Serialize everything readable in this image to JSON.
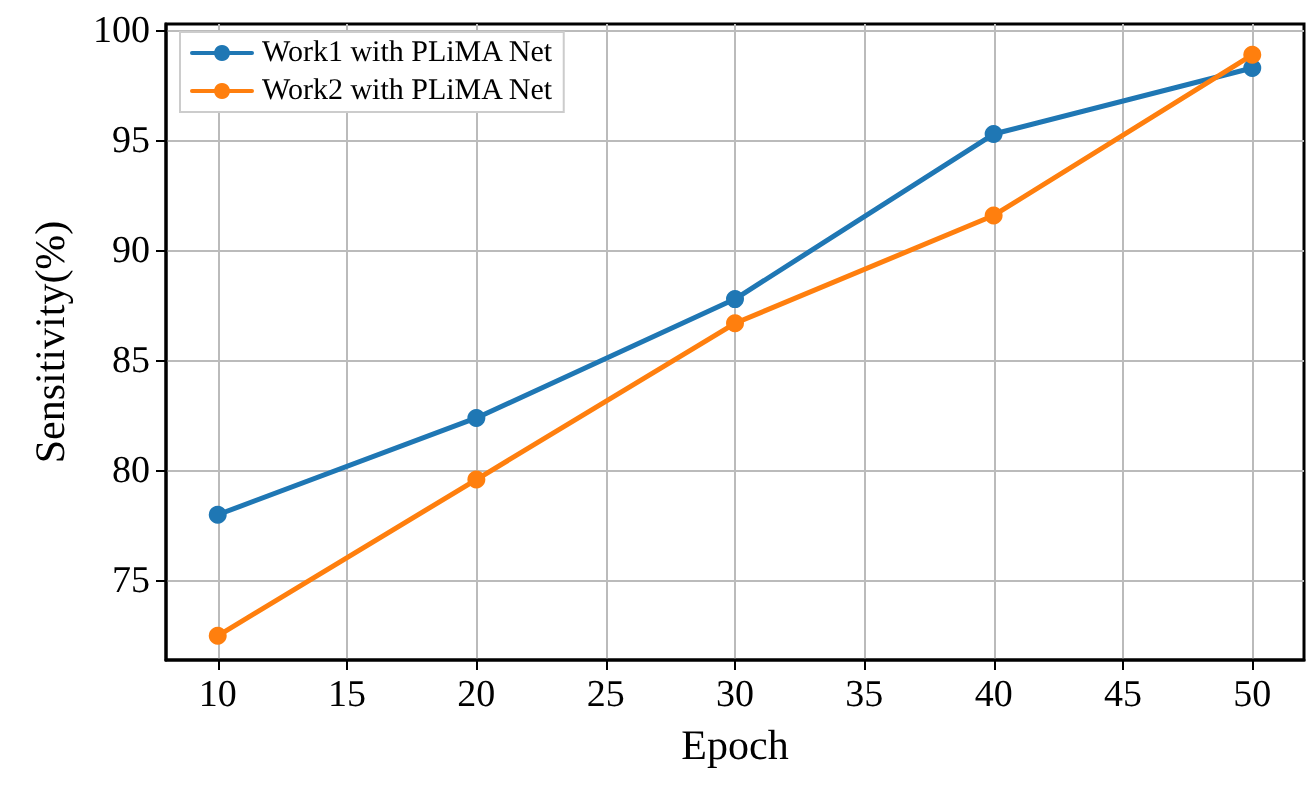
{
  "chart_data": {
    "type": "line",
    "xlabel": "Epoch",
    "ylabel": "Sensitivity(%)",
    "x": [
      10,
      20,
      30,
      40,
      50
    ],
    "series": [
      {
        "name": "Work1 with PLiMA Net",
        "color": "#1f77b4",
        "values": [
          78.0,
          82.4,
          87.8,
          95.3,
          98.3
        ]
      },
      {
        "name": "Work2 with PLiMA Net",
        "color": "#ff7f0e",
        "values": [
          72.5,
          79.6,
          86.7,
          91.6,
          98.9
        ]
      }
    ],
    "xlim": [
      8,
      52
    ],
    "xticks": [
      10,
      15,
      20,
      25,
      30,
      35,
      40,
      45,
      50
    ],
    "ylim": [
      71.4,
      100.3
    ],
    "yticks": [
      75,
      80,
      85,
      90,
      95,
      100
    ],
    "grid": true,
    "legend": "top left",
    "marker": "circle",
    "line_style": "solid"
  }
}
